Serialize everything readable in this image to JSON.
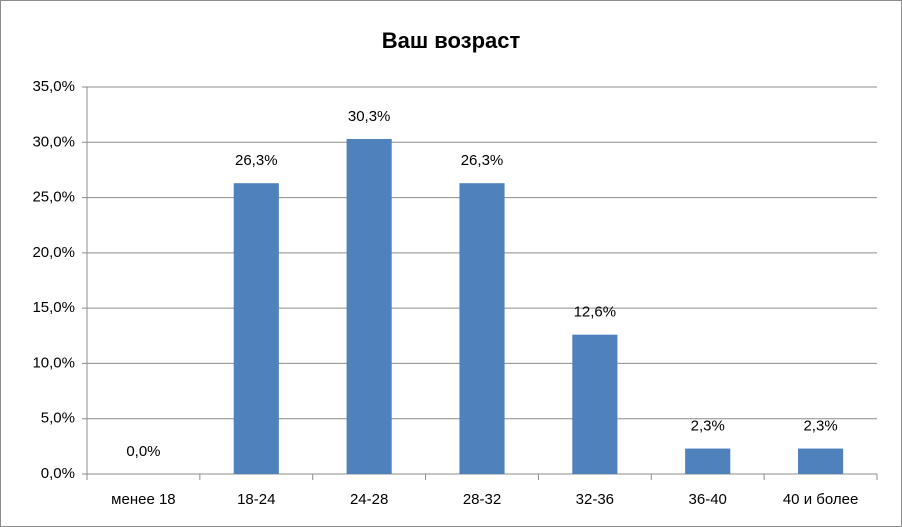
{
  "chart_data": {
    "type": "bar",
    "title": "Ваш возраст",
    "categories": [
      "менее 18",
      "18-24",
      "24-28",
      "28-32",
      "32-36",
      "36-40",
      "40 и более"
    ],
    "values": [
      0.0,
      26.3,
      30.3,
      26.3,
      12.6,
      2.3,
      2.3
    ],
    "value_labels": [
      "0,0%",
      "26,3%",
      "30,3%",
      "26,3%",
      "12,6%",
      "2,3%",
      "2,3%"
    ],
    "color": "#4f81bd",
    "ylim": [
      0,
      35
    ],
    "yticks": [
      {
        "value": 0,
        "label": "0,0%"
      },
      {
        "value": 5,
        "label": "5,0%"
      },
      {
        "value": 10,
        "label": "10,0%"
      },
      {
        "value": 15,
        "label": "15,0%"
      },
      {
        "value": 20,
        "label": "20,0%"
      },
      {
        "value": 25,
        "label": "25,0%"
      },
      {
        "value": 30,
        "label": "30,0%"
      },
      {
        "value": 35,
        "label": "35,0%"
      }
    ],
    "grid": true
  }
}
